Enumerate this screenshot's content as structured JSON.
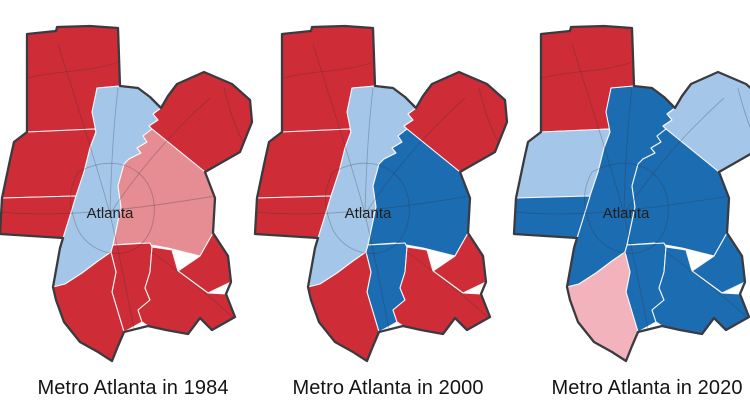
{
  "page": {
    "background": "#ffffff",
    "description": "Three small-multiple county maps of metro Atlanta presidential results"
  },
  "colors": {
    "strong_rep": "#ce2d38",
    "lean_rep": "#e68c93",
    "light_rep": "#f2b3bd",
    "lean_dem": "#a4c7e9",
    "strong_dem": "#1c6cb2",
    "outline": "#3a3b40",
    "county_border": "#f7f7f7",
    "road": "rgba(45,45,50,0.28)",
    "label": "#1f1f1f",
    "caption": "#141414"
  },
  "maps": [
    {
      "caption": "Metro Atlanta in 1984",
      "city_label": "Atlanta",
      "counties": {
        "cherokee": "strong_rep",
        "cobb": "strong_rep",
        "gwinnett": "strong_rep",
        "fulton": "lean_dem",
        "dekalb": "lean_rep",
        "douglas": "strong_rep",
        "clayton": "strong_rep",
        "fayette": "strong_rep",
        "henry": "strong_rep",
        "rockdale": "strong_rep"
      }
    },
    {
      "caption": "Metro Atlanta in 2000",
      "city_label": "Atlanta",
      "counties": {
        "cherokee": "strong_rep",
        "cobb": "strong_rep",
        "gwinnett": "strong_rep",
        "fulton": "lean_dem",
        "dekalb": "strong_dem",
        "douglas": "strong_rep",
        "clayton": "strong_dem",
        "fayette": "strong_rep",
        "henry": "strong_rep",
        "rockdale": "strong_rep"
      }
    },
    {
      "caption": "Metro Atlanta in 2020",
      "city_label": "Atlanta",
      "counties": {
        "cherokee": "strong_rep",
        "cobb": "lean_dem",
        "gwinnett": "lean_dem",
        "fulton": "strong_dem",
        "dekalb": "strong_dem",
        "douglas": "strong_dem",
        "clayton": "strong_dem",
        "fayette": "light_rep",
        "henry": "strong_dem",
        "rockdale": "strong_dem"
      }
    }
  ]
}
